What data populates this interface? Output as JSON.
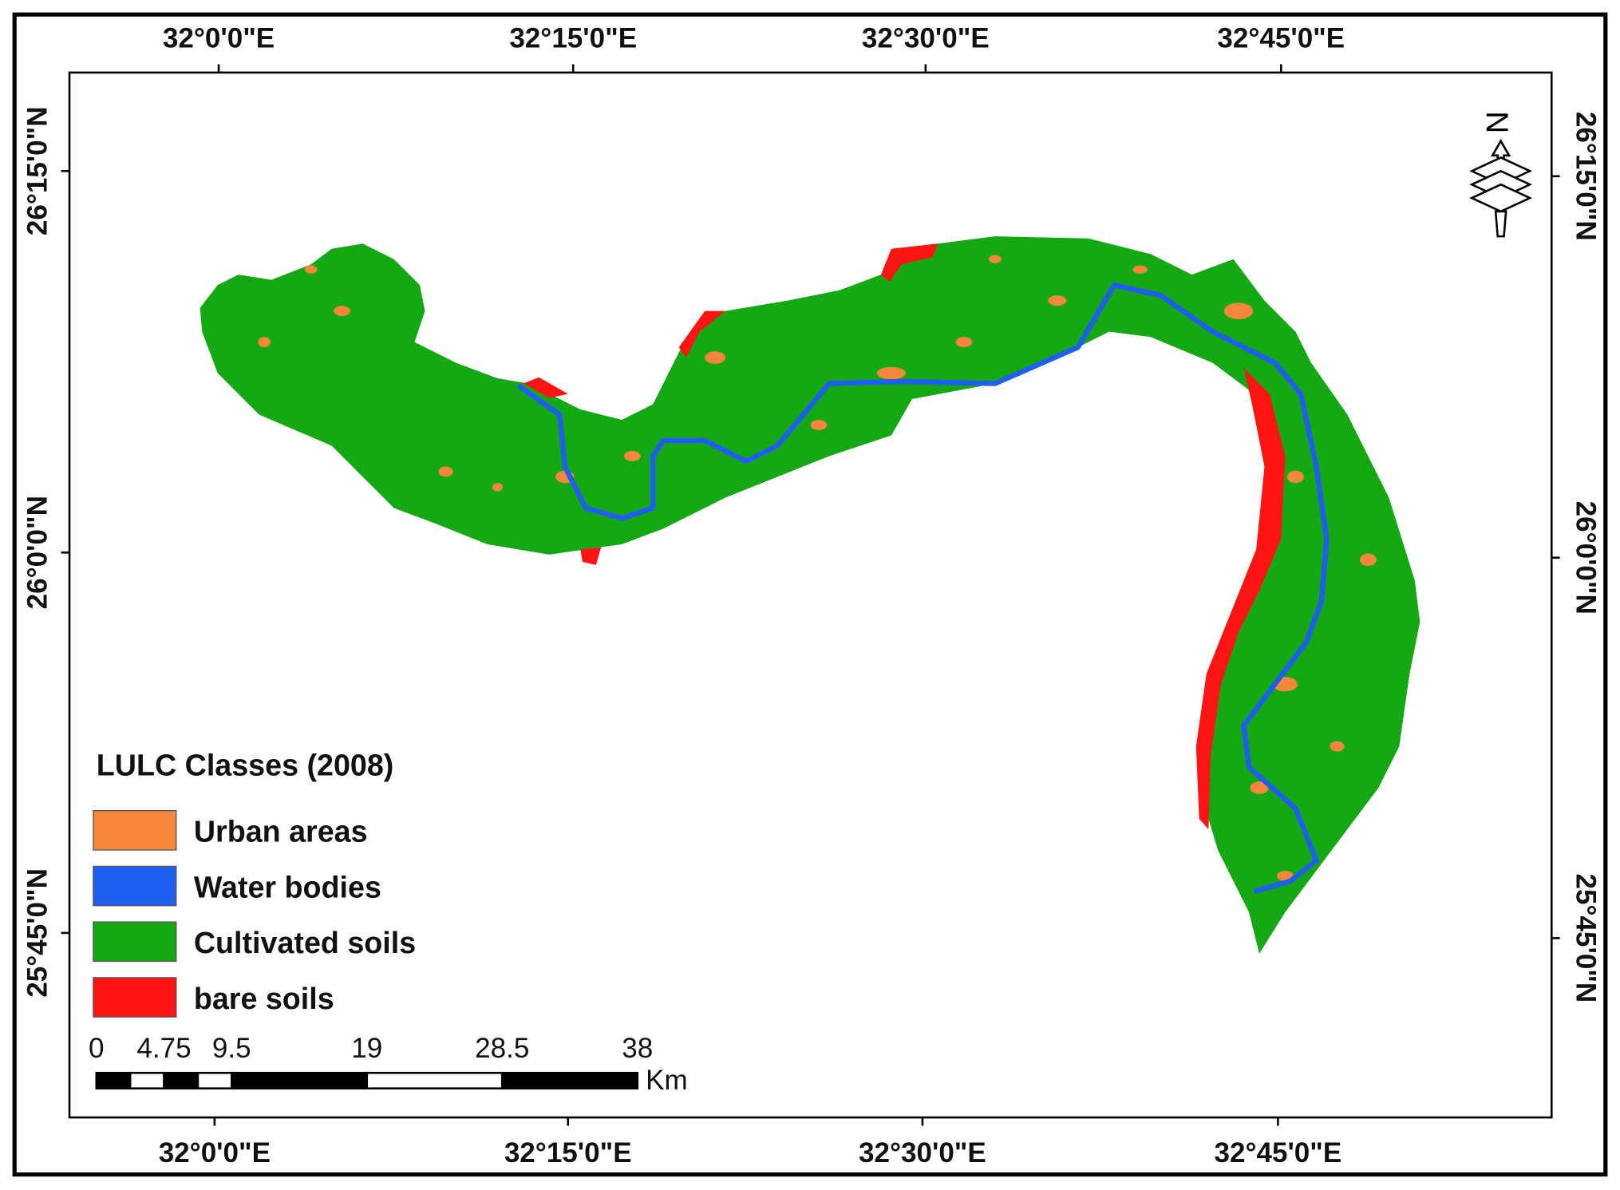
{
  "map": {
    "top_labels": [
      "32°0'0\"E",
      "32°15'0\"E",
      "32°30'0\"E",
      "32°45'0\"E"
    ],
    "bottom_labels": [
      "32°0'0\"E",
      "32°15'0\"E",
      "32°30'0\"E",
      "32°45'0\"E"
    ],
    "left_labels": [
      "26°15'0\"N",
      "26°0'0\"N",
      "25°45'0\"N"
    ],
    "right_labels": [
      "26°15'0\"N",
      "26°0'0\"N",
      "25°45'0\"N"
    ],
    "north_label": "N"
  },
  "legend": {
    "title": "LULC Classes (2008)",
    "items": [
      {
        "label": "Urban areas",
        "color": "#f4873a"
      },
      {
        "label": "Water bodies",
        "color": "#1f5ef0"
      },
      {
        "label": "Cultivated soils",
        "color": "#14a814"
      },
      {
        "label": "bare soils",
        "color": "#ff1414"
      }
    ]
  },
  "scale_bar": {
    "ticks": [
      0,
      4.75,
      9.5,
      19,
      28.5,
      38
    ],
    "unit": "Km"
  }
}
